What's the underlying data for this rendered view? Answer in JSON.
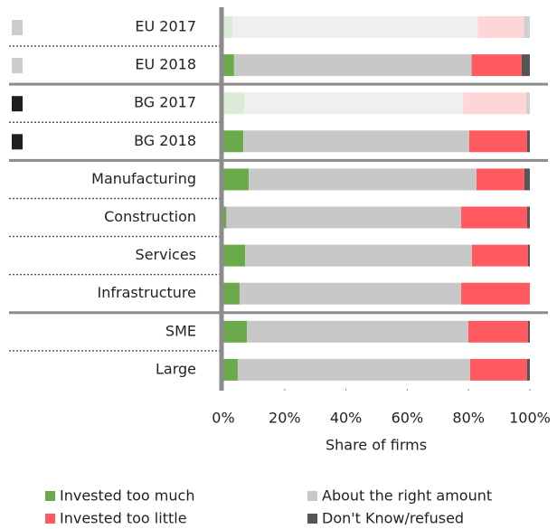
{
  "chart_data": {
    "type": "stacked-barh",
    "categories": [
      "EU 2017",
      "EU 2018",
      "BG 2017",
      "BG 2018",
      "Manufacturing",
      "Construction",
      "Services",
      "Infrastructure",
      "SME",
      "Large"
    ],
    "groups": [
      2,
      2,
      4,
      2
    ],
    "faded": [
      true,
      false,
      true,
      false,
      false,
      false,
      false,
      false,
      false,
      false
    ],
    "marker_colors": [
      "#cccccc",
      "#cccccc",
      "#1e1e1e",
      "#1e1e1e",
      null,
      null,
      null,
      null,
      null,
      null
    ],
    "series": [
      {
        "name": "Invested too much",
        "color": "#6aaa4b",
        "faded_color": "#dcebd5",
        "values": [
          3,
          3.5,
          6.8,
          6.5,
          8.3,
          1,
          7.1,
          5.3,
          7.7,
          4.7
        ]
      },
      {
        "name": "About the right amount",
        "color": "#c8c8c8",
        "faded_color": "#efefef",
        "values": [
          80,
          77.5,
          71.4,
          73.7,
          74.3,
          76.6,
          74,
          72.3,
          72.2,
          75.8
        ]
      },
      {
        "name": "Invested too little",
        "color": "#ff5a5f",
        "faded_color": "#ffd6d7",
        "values": [
          15,
          16.3,
          20.6,
          18.9,
          15.6,
          21.5,
          18.3,
          22.4,
          19.5,
          18.6
        ]
      },
      {
        "name": "Don't Know/refused",
        "color": "#555555",
        "faded_color": "#d0d0d0",
        "values": [
          2,
          2.7,
          1.2,
          0.9,
          1.8,
          0.9,
          0.6,
          0,
          0.6,
          0.9
        ]
      }
    ],
    "xlim": [
      0,
      100
    ],
    "xticks": [
      {
        "value": 0,
        "label": "0%"
      },
      {
        "value": 20,
        "label": "20%"
      },
      {
        "value": 40,
        "label": "40%"
      },
      {
        "value": 60,
        "label": "60%"
      },
      {
        "value": 80,
        "label": "80%"
      },
      {
        "value": 100,
        "label": "100%"
      }
    ],
    "xlabel": "Share of firms"
  }
}
